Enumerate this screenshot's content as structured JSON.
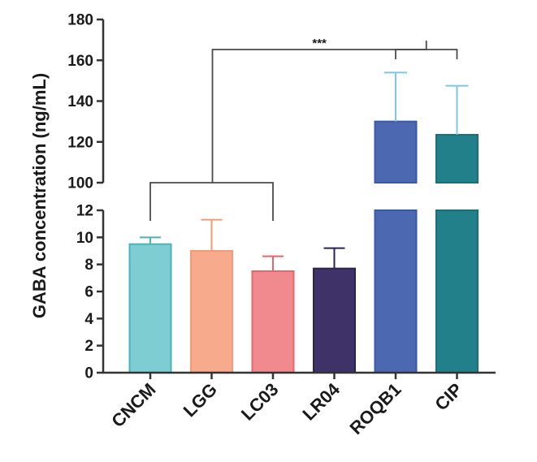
{
  "chart_data": {
    "type": "bar",
    "ylabel": "GABA concentration (ng/mL)",
    "categories": [
      "CNCM",
      "LGG",
      "LC03",
      "LR04",
      "ROQB1",
      "CIP"
    ],
    "values": [
      9.5,
      9.0,
      7.5,
      7.7,
      130,
      123.5
    ],
    "errors": [
      0.5,
      2.3,
      1.1,
      1.5,
      24,
      24
    ],
    "colors": {
      "fill": [
        "#7ecdd3",
        "#f7ab8c",
        "#f08a8e",
        "#3f3269",
        "#4b68b1",
        "#21808a"
      ],
      "edge": [
        "#49b3bc",
        "#f39a74",
        "#e5666c",
        "#2c2352",
        "#3a59a8",
        "#1a6f78"
      ]
    },
    "broken_axis": {
      "lower_range": [
        0,
        12
      ],
      "upper_range": [
        100,
        180
      ],
      "lower_ticks": [
        0,
        2,
        4,
        6,
        8,
        10,
        12
      ],
      "upper_ticks": [
        100,
        120,
        140,
        160,
        180
      ]
    },
    "significance": {
      "label": "***",
      "group_a": [
        "CNCM",
        "LGG",
        "LC03"
      ],
      "group_b": [
        "ROQB1",
        "CIP"
      ]
    }
  }
}
